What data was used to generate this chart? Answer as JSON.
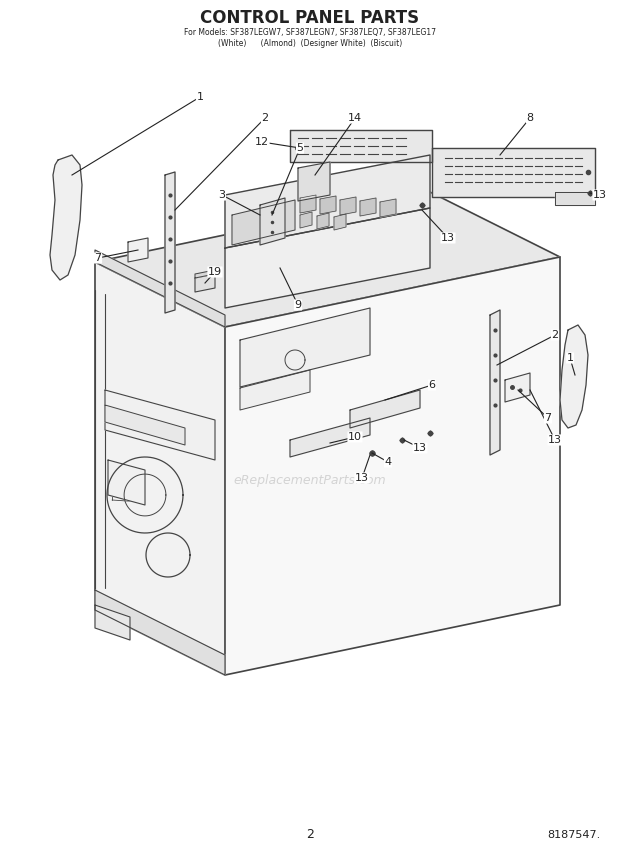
{
  "title": "CONTROL PANEL PARTS",
  "subtitle_line1": "For Models: SF387LEGW7, SF387LEGN7, SF387LEQ7, SF387LEG17",
  "subtitle_line2": "(White)      (Almond)  (Designer White)  (Biscuit)",
  "page_number": "2",
  "part_number": "8187547.",
  "watermark": "eReplacementParts.com",
  "bg_color": "#ffffff",
  "line_color": "#444444",
  "text_color": "#222222",
  "title_color": "#222222"
}
